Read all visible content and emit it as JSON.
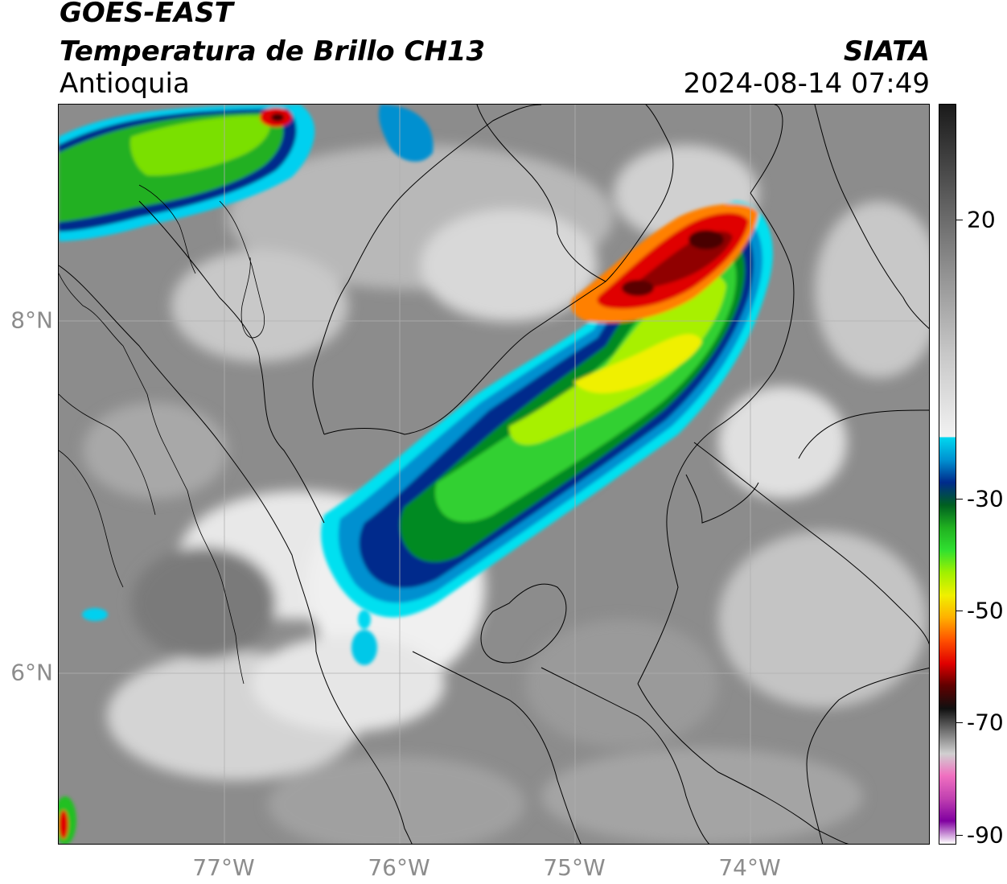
{
  "header": {
    "satellite": "GOES-EAST",
    "product": "Temperatura de Brillo CH13",
    "region": "Antioquia",
    "organization": "SIATA",
    "timestamp": "2024-08-14 07:49"
  },
  "axes": {
    "lat_ticks": [
      {
        "label": "8°N",
        "value": 8
      },
      {
        "label": "6°N",
        "value": 6
      }
    ],
    "lon_ticks": [
      {
        "label": "77°W",
        "value": -77
      },
      {
        "label": "76°W",
        "value": -76
      },
      {
        "label": "75°W",
        "value": -75
      },
      {
        "label": "74°W",
        "value": -74
      }
    ]
  },
  "colorbar": {
    "ticks": [
      {
        "label": "20",
        "value": 20
      },
      {
        "label": "-30",
        "value": -30
      },
      {
        "label": "-50",
        "value": -50
      },
      {
        "label": "-70",
        "value": -70
      },
      {
        "label": "-90",
        "value": -90
      }
    ],
    "colors": [
      "#1a1a1a",
      "#555555",
      "#909090",
      "#c8c8c8",
      "#f2f2f2",
      "#00d8f0",
      "#0090d0",
      "#002b8c",
      "#006020",
      "#20b020",
      "#30e030",
      "#a0f000",
      "#f0f000",
      "#ffb000",
      "#ff5000",
      "#e00000",
      "#600000",
      "#101010",
      "#707070",
      "#d0d0d0",
      "#f070c0",
      "#c040b0",
      "#8000a0",
      "#ffffff"
    ]
  }
}
